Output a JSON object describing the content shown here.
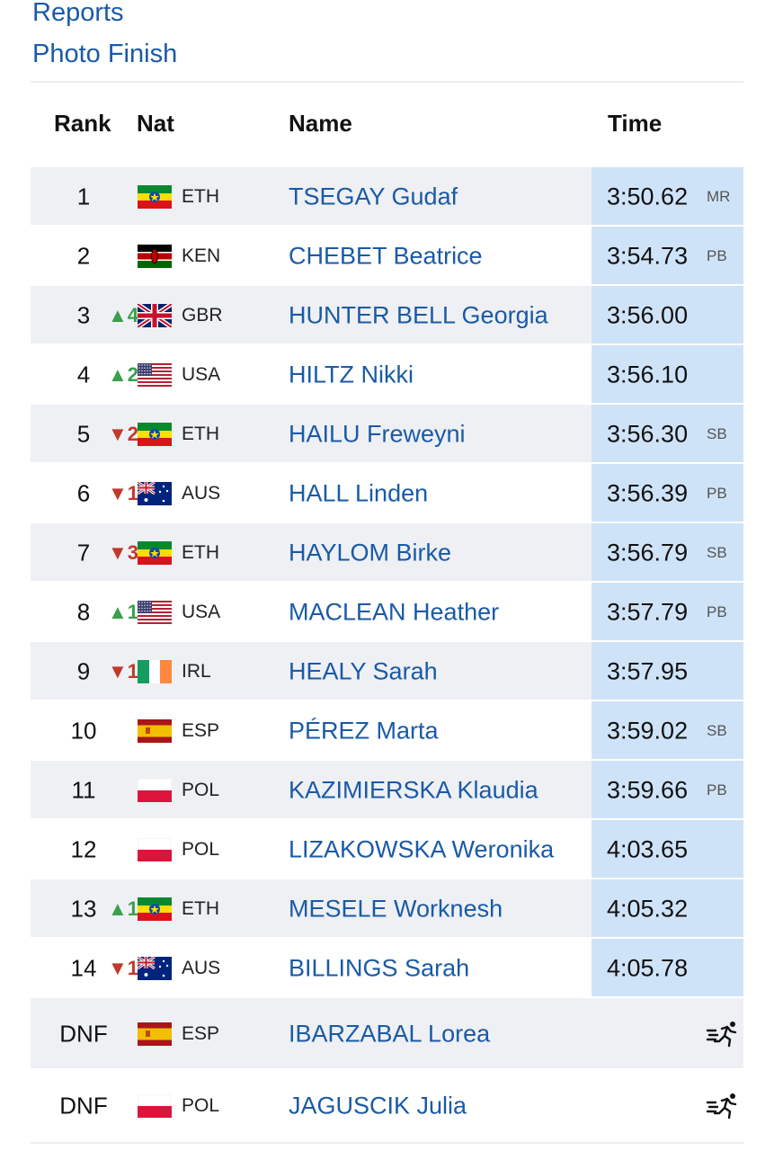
{
  "nav": {
    "reports": "Reports",
    "photo_finish": "Photo Finish"
  },
  "columns": {
    "rank": "Rank",
    "nat": "Nat",
    "name": "Name",
    "time": "Time"
  },
  "rows": [
    {
      "rank": "1",
      "move": "",
      "dir": "",
      "flag": "ETH",
      "nat": "ETH",
      "name": "TSEGAY Gudaf",
      "time": "3:50.62",
      "note": "MR"
    },
    {
      "rank": "2",
      "move": "",
      "dir": "",
      "flag": "KEN",
      "nat": "KEN",
      "name": "CHEBET Beatrice",
      "time": "3:54.73",
      "note": "PB"
    },
    {
      "rank": "3",
      "move": "▲4",
      "dir": "up",
      "flag": "GBR",
      "nat": "GBR",
      "name": "HUNTER BELL Georgia",
      "time": "3:56.00",
      "note": ""
    },
    {
      "rank": "4",
      "move": "▲2",
      "dir": "up",
      "flag": "USA",
      "nat": "USA",
      "name": "HILTZ Nikki",
      "time": "3:56.10",
      "note": ""
    },
    {
      "rank": "5",
      "move": "▼2",
      "dir": "down",
      "flag": "ETH",
      "nat": "ETH",
      "name": "HAILU Freweyni",
      "time": "3:56.30",
      "note": "SB"
    },
    {
      "rank": "6",
      "move": "▼1",
      "dir": "down",
      "flag": "AUS",
      "nat": "AUS",
      "name": "HALL Linden",
      "time": "3:56.39",
      "note": "PB"
    },
    {
      "rank": "7",
      "move": "▼3",
      "dir": "down",
      "flag": "ETH",
      "nat": "ETH",
      "name": "HAYLOM Birke",
      "time": "3:56.79",
      "note": "SB"
    },
    {
      "rank": "8",
      "move": "▲1",
      "dir": "up",
      "flag": "USA",
      "nat": "USA",
      "name": "MACLEAN Heather",
      "time": "3:57.79",
      "note": "PB"
    },
    {
      "rank": "9",
      "move": "▼1",
      "dir": "down",
      "flag": "IRL",
      "nat": "IRL",
      "name": "HEALY Sarah",
      "time": "3:57.95",
      "note": ""
    },
    {
      "rank": "10",
      "move": "",
      "dir": "",
      "flag": "ESP",
      "nat": "ESP",
      "name": "PÉREZ Marta",
      "time": "3:59.02",
      "note": "SB"
    },
    {
      "rank": "11",
      "move": "",
      "dir": "",
      "flag": "POL",
      "nat": "POL",
      "name": "KAZIMIERSKA Klaudia",
      "time": "3:59.66",
      "note": "PB"
    },
    {
      "rank": "12",
      "move": "",
      "dir": "",
      "flag": "POL",
      "nat": "POL",
      "name": "LIZAKOWSKA Weronika",
      "time": "4:03.65",
      "note": ""
    },
    {
      "rank": "13",
      "move": "▲1",
      "dir": "up",
      "flag": "ETH",
      "nat": "ETH",
      "name": "MESELE Worknesh",
      "time": "4:05.32",
      "note": ""
    },
    {
      "rank": "14",
      "move": "▼1",
      "dir": "down",
      "flag": "AUS",
      "nat": "AUS",
      "name": "BILLINGS Sarah",
      "time": "4:05.78",
      "note": ""
    },
    {
      "rank": "DNF",
      "move": "",
      "dir": "",
      "flag": "ESP",
      "nat": "ESP",
      "name": "IBARZABAL Lorea",
      "time": "",
      "note": "",
      "icon": "runner-icon"
    },
    {
      "rank": "DNF",
      "move": "",
      "dir": "",
      "flag": "POL",
      "nat": "POL",
      "name": "JAGUSCIK Julia",
      "time": "",
      "note": "",
      "icon": "runner-icon"
    }
  ],
  "colors": {
    "link": "#1a5aa6",
    "time_bg": "#cfe3f8",
    "alt_row": "#eef0f4",
    "up": "#3aa04a",
    "down": "#c0392b"
  }
}
